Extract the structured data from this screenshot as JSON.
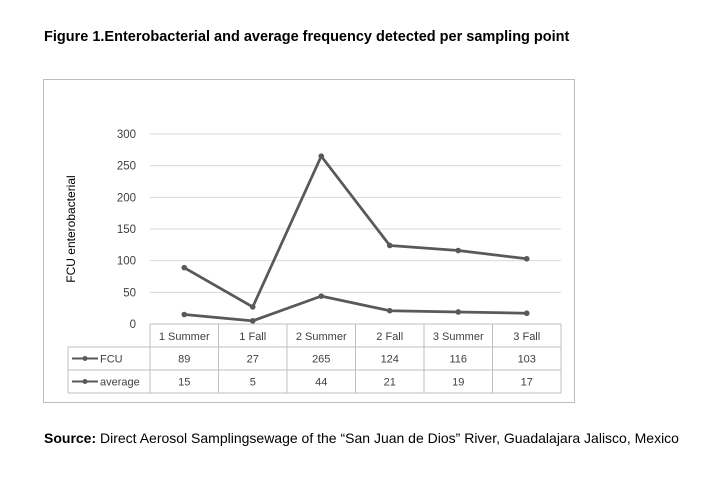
{
  "figure": {
    "title": "Figure 1.Enterobacterial and average frequency detected per sampling point"
  },
  "source": {
    "label": "Source:",
    "text": " Direct Aerosol Samplingsewage of the “San Juan de Dios” River, Guadalajara Jalisco, Mexico"
  },
  "chart_data": {
    "type": "line",
    "title": "",
    "ylabel": "FCU enterobacterial",
    "xlabel": "",
    "ylim": [
      0,
      300
    ],
    "yticks": [
      0,
      50,
      100,
      150,
      200,
      250,
      300
    ],
    "grid": true,
    "legend": "data-table",
    "categories": [
      "1 Summer",
      "1 Fall",
      "2 Summer",
      "2 Fall",
      "3 Summer",
      "3 Fall"
    ],
    "series": [
      {
        "name": "FCU",
        "values": [
          89,
          27,
          265,
          124,
          116,
          103
        ],
        "color": "#595959"
      },
      {
        "name": "average",
        "values": [
          15,
          5,
          44,
          21,
          19,
          17
        ],
        "color": "#595959"
      }
    ]
  }
}
